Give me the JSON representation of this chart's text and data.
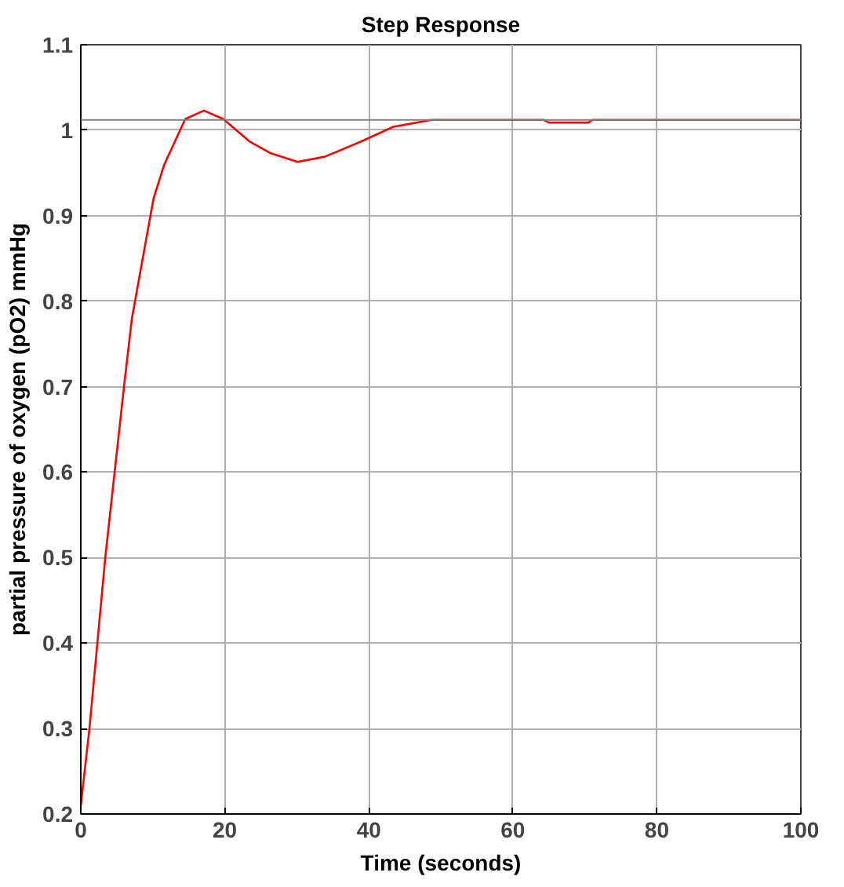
{
  "chart_data": {
    "type": "line",
    "title": "Step Response",
    "xlabel": "Time (seconds)",
    "ylabel": "partial pressure of oxygen (pO2) mmHg",
    "x": [
      0,
      1.2,
      3.4,
      6.0,
      7.1,
      10.1,
      11.6,
      14.5,
      17.1,
      19.8,
      23.4,
      26.4,
      30.1,
      33.9,
      39,
      43.4,
      48.7,
      64.3,
      65,
      70.5,
      71,
      100
    ],
    "series": [
      {
        "color": "#ff0000",
        "values": [
          0.21,
          0.3,
          0.5,
          0.7,
          0.78,
          0.92,
          0.96,
          1.013,
          1.023,
          1.013,
          0.987,
          0.973,
          0.963,
          0.969,
          0.987,
          1.004,
          1.012,
          1.012,
          1.009,
          1.009,
          1.012,
          1.012
        ]
      }
    ],
    "ref_lines": [
      {
        "axis": "y",
        "value": 1.012,
        "color": "#808080"
      }
    ],
    "xlim": [
      0,
      100
    ],
    "xticks": [
      0,
      20,
      40,
      60,
      80,
      100
    ],
    "ylim": [
      0.2,
      1.1
    ],
    "yticks": [
      0.2,
      0.3,
      0.4,
      0.5,
      0.6,
      0.7,
      0.8,
      0.9,
      1,
      1.1
    ],
    "grid": true
  }
}
